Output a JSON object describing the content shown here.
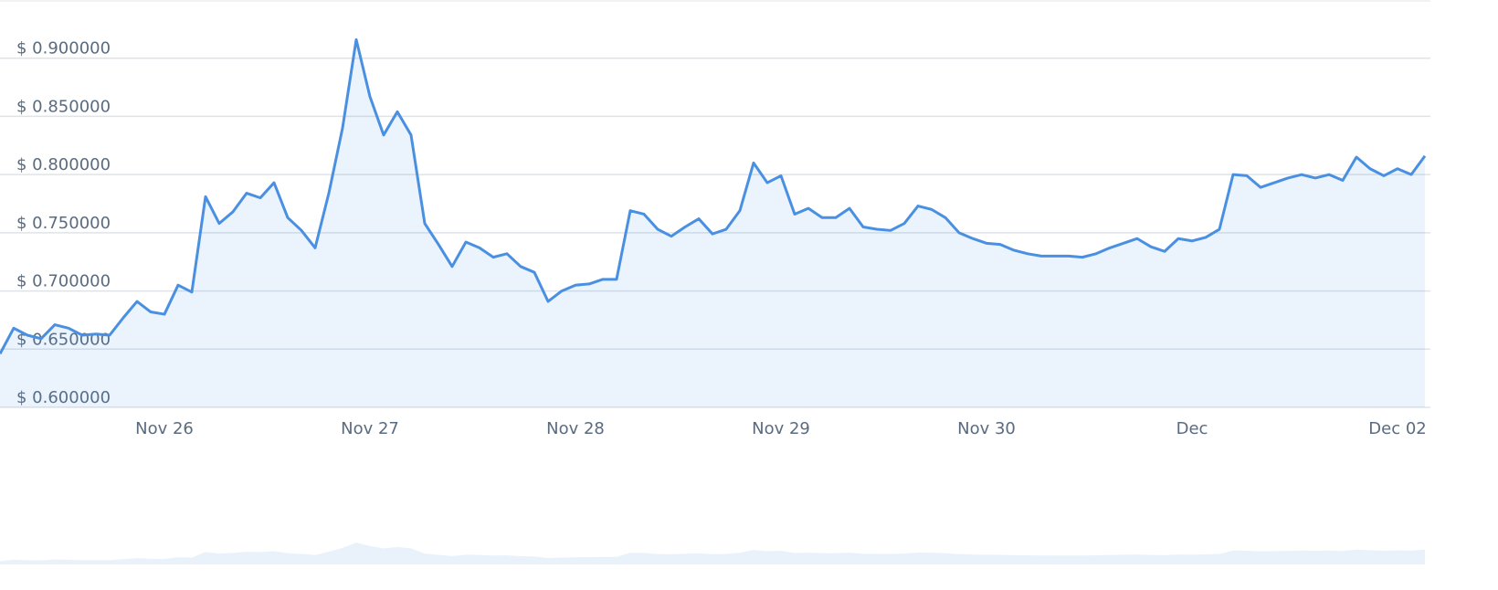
{
  "chart_data": {
    "type": "line",
    "categories": [
      null,
      null,
      null,
      null,
      null,
      null,
      null,
      null,
      null,
      null,
      null,
      null,
      "Nov 26",
      null,
      null,
      null,
      null,
      null,
      null,
      null,
      null,
      null,
      null,
      null,
      null,
      null,
      null,
      "Nov 27",
      null,
      null,
      null,
      null,
      null,
      null,
      null,
      null,
      null,
      null,
      null,
      null,
      null,
      null,
      "Nov 28",
      null,
      null,
      null,
      null,
      null,
      null,
      null,
      null,
      null,
      null,
      null,
      null,
      null,
      null,
      "Nov 29",
      null,
      null,
      null,
      null,
      null,
      null,
      null,
      null,
      null,
      null,
      null,
      null,
      null,
      null,
      "Nov 30",
      null,
      null,
      null,
      null,
      null,
      null,
      null,
      null,
      null,
      null,
      null,
      null,
      null,
      null,
      "Dec",
      null,
      null,
      null,
      null,
      null,
      null,
      null,
      null,
      null,
      null,
      null,
      null,
      null,
      null,
      "Dec 02",
      null,
      null
    ],
    "values": [
      0.646,
      0.668,
      0.662,
      0.659,
      0.671,
      0.668,
      0.662,
      0.663,
      0.662,
      0.677,
      0.691,
      0.682,
      0.68,
      0.705,
      0.699,
      0.781,
      0.758,
      0.768,
      0.784,
      0.78,
      0.793,
      0.763,
      0.752,
      0.737,
      0.784,
      0.84,
      0.916,
      0.867,
      0.834,
      0.854,
      0.834,
      0.758,
      0.74,
      0.721,
      0.742,
      0.737,
      0.729,
      0.732,
      0.721,
      0.716,
      0.691,
      0.7,
      0.705,
      0.706,
      0.71,
      0.71,
      0.769,
      0.766,
      0.753,
      0.747,
      0.755,
      0.762,
      0.749,
      0.753,
      0.769,
      0.81,
      0.793,
      0.799,
      0.766,
      0.771,
      0.763,
      0.763,
      0.771,
      0.755,
      0.753,
      0.752,
      0.758,
      0.773,
      0.77,
      0.763,
      0.75,
      0.745,
      0.741,
      0.74,
      0.735,
      0.732,
      0.73,
      0.73,
      0.73,
      0.729,
      0.732,
      0.737,
      0.741,
      0.745,
      0.738,
      0.734,
      0.745,
      0.743,
      0.746,
      0.753,
      0.8,
      0.799,
      0.789,
      0.793,
      0.797,
      0.8,
      0.797,
      0.8,
      0.795,
      0.815,
      0.805,
      0.799,
      0.805,
      0.8,
      0.816
    ],
    "color": "#4a90e2",
    "ylim": [
      0.6,
      0.95
    ],
    "yticks": [
      {
        "value": 0.6,
        "label": "$ 0.600000"
      },
      {
        "value": 0.65,
        "label": "$ 0.650000"
      },
      {
        "value": 0.7,
        "label": "$ 0.700000"
      },
      {
        "value": 0.75,
        "label": "$ 0.750000"
      },
      {
        "value": 0.8,
        "label": "$ 0.800000"
      },
      {
        "value": 0.85,
        "label": "$ 0.850000"
      },
      {
        "value": 0.9,
        "label": "$ 0.900000"
      }
    ],
    "grid": true
  }
}
